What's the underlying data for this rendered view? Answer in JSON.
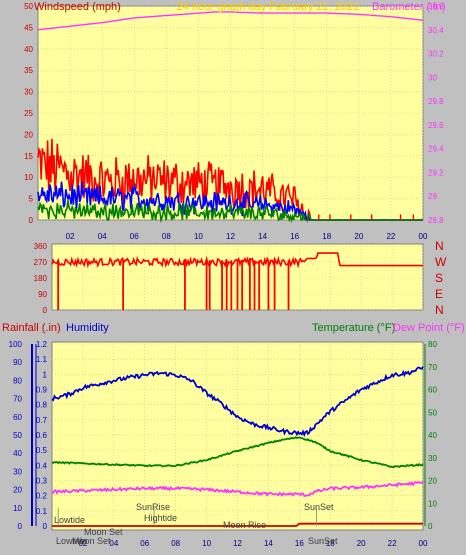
{
  "header": {
    "left_label": "Windspeed (mph)",
    "center_label": "24 hour graph day   February 21, 2021",
    "right_label": "Barometer (.in)"
  },
  "lower_header": {
    "rainfall_label": "Rainfall (.in)",
    "humidity_label": "Humidity",
    "temperature_label": "Temperature (°F)",
    "dewpoint_label": "Dew Point (°F)"
  },
  "directions": [
    "N",
    "W",
    "S",
    "E",
    "N"
  ],
  "annotations": {
    "lowtide1": "Lowtide",
    "lowtide2": "Lowtide",
    "moonset1": "Moon Set",
    "moonset2": "Moon Set",
    "sunrise": "SunRise",
    "hightide": "Hightide",
    "moonrise": "Moon Rise",
    "sunset1": "SunSet",
    "sunset2": "SunSet"
  },
  "colors": {
    "plot_bg": "#ffffa0",
    "frame_bg": "#c0c0c0",
    "wind_gust": "#ff0000",
    "wind_avg": "#0000ff",
    "wind_low": "#008000",
    "barometer": "#ff33ff",
    "humidity": "#0000cc",
    "temperature": "#008000",
    "dewpoint": "#ff33ff",
    "rainfall": "#cc0000",
    "direction": "#ff0000"
  },
  "chart_data": [
    {
      "type": "line",
      "name": "wind-barometer",
      "x_ticks": [
        "02",
        "04",
        "06",
        "08",
        "10",
        "12",
        "14",
        "16",
        "18",
        "20",
        "22",
        "00"
      ],
      "x_range": [
        0,
        24
      ],
      "y_left_range": [
        0,
        50
      ],
      "y_left_ticks": [
        0,
        5,
        10,
        15,
        20,
        25,
        30,
        35,
        40,
        45,
        50
      ],
      "y_right_range": [
        28.8,
        30.6
      ],
      "y_right_ticks": [
        "28.8",
        "29",
        "29.2",
        "29.4",
        "29.6",
        "29.8",
        "30",
        "30.2",
        "30.4",
        "30.6"
      ],
      "wind_profile": {
        "hours": [
          0,
          2,
          4,
          6,
          8,
          10,
          12,
          14,
          15,
          16,
          16.6,
          17,
          24
        ],
        "gust": [
          13,
          11,
          9,
          9.5,
          9,
          8.5,
          8,
          7,
          6,
          5,
          2,
          0,
          0
        ],
        "avg": [
          6,
          5.5,
          5,
          5,
          4.5,
          4.2,
          4,
          3.5,
          3,
          2.5,
          1,
          0,
          0
        ],
        "low": [
          2.5,
          2.2,
          2,
          2,
          1.8,
          1.8,
          1.7,
          1.5,
          1.2,
          1,
          0.4,
          0,
          0
        ]
      },
      "barometer": {
        "hours": [
          0,
          2,
          4,
          6,
          8,
          10,
          11,
          12,
          14,
          16,
          18,
          20,
          22,
          24
        ],
        "values": [
          30.4,
          30.43,
          30.46,
          30.5,
          30.52,
          30.54,
          30.55,
          30.55,
          30.54,
          30.54,
          30.54,
          30.53,
          30.51,
          30.48
        ]
      }
    },
    {
      "type": "line",
      "name": "wind-direction",
      "y_ticks": [
        0,
        90,
        180,
        270,
        360
      ],
      "y_range": [
        0,
        360
      ],
      "direction_profile": {
        "hours": [
          0,
          16.3,
          16.5,
          17.1,
          17.2,
          18.5,
          18.6,
          24
        ],
        "values": [
          270,
          270,
          290,
          290,
          320,
          320,
          250,
          250
        ]
      },
      "direction_drops_hours": [
        0.4,
        4.6,
        8.6,
        10.0,
        10.2,
        11.0,
        11.3,
        11.6,
        12.0,
        12.3,
        12.8,
        13.1,
        13.4,
        14.0,
        14.4,
        15.3
      ]
    },
    {
      "type": "line",
      "name": "humidity-temperature",
      "y_left_range": [
        0,
        1.2
      ],
      "y_left_ticks": [
        "0",
        "0.1",
        "0.2",
        "0.3",
        "0.4",
        "0.5",
        "0.6",
        "0.7",
        "0.8",
        "0.9",
        "1",
        "1.1",
        "1.2"
      ],
      "y_humidity_range": [
        0,
        100
      ],
      "y_humidity_ticks": [
        0,
        10,
        20,
        30,
        40,
        50,
        60,
        70,
        80,
        90,
        100
      ],
      "y_right_range": [
        0,
        80
      ],
      "y_right_ticks": [
        0,
        10,
        20,
        30,
        40,
        50,
        60,
        70,
        80
      ],
      "humidity": {
        "hours": [
          0,
          1,
          2,
          4,
          6,
          7,
          8,
          9,
          10,
          11,
          12,
          13,
          14,
          15,
          16,
          16.5,
          17,
          18,
          19,
          20,
          21,
          22,
          23,
          24
        ],
        "values": [
          70,
          72,
          76,
          80,
          83,
          84,
          83,
          80,
          73,
          67,
          60,
          56,
          54,
          52,
          51,
          51,
          55,
          63,
          69,
          75,
          79,
          83,
          84,
          87
        ]
      },
      "temperature": {
        "hours": [
          0,
          2,
          4,
          6,
          8,
          10,
          12,
          14,
          15,
          16,
          17,
          18,
          20,
          21,
          22,
          23,
          24
        ],
        "values": [
          28,
          27.5,
          27,
          26.5,
          26.5,
          29,
          33,
          36.5,
          38,
          39,
          37,
          33,
          29,
          27.5,
          26,
          26.5,
          27
        ]
      },
      "dewpoint": {
        "hours": [
          0,
          2,
          4,
          6,
          8,
          10,
          12,
          14,
          16,
          16.5,
          17,
          18,
          20,
          22,
          24
        ],
        "values": [
          15,
          15.5,
          16,
          16.5,
          16.5,
          16,
          15,
          14,
          14,
          13.5,
          15,
          16.5,
          17,
          18,
          19
        ]
      },
      "rainfall": {
        "hours": [
          0,
          15.8,
          16,
          24
        ],
        "values": [
          0,
          0,
          0.015,
          0.015
        ]
      }
    }
  ]
}
